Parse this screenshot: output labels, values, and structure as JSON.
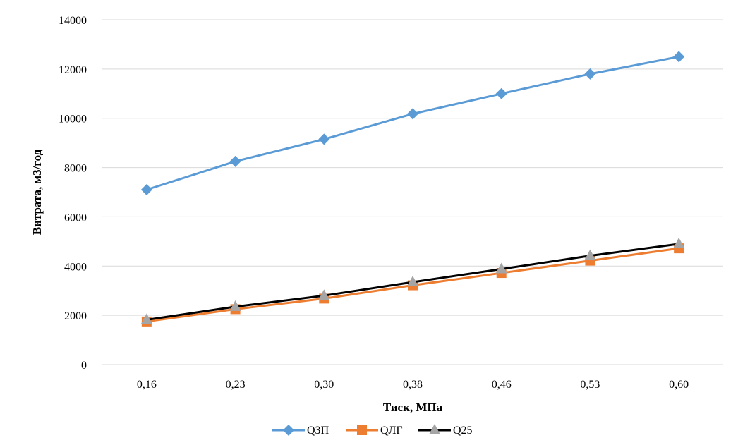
{
  "chart_data": {
    "type": "line",
    "categories": [
      "0,16",
      "0,23",
      "0,30",
      "0,38",
      "0,46",
      "0,53",
      "0,60"
    ],
    "series": [
      {
        "name": "QЗП",
        "values": [
          7100,
          8250,
          9150,
          10180,
          11000,
          11800,
          12500
        ],
        "color": "#5b9bd5",
        "marker": "diamond"
      },
      {
        "name": "QЛГ",
        "values": [
          1750,
          2250,
          2680,
          3220,
          3720,
          4220,
          4720
        ],
        "color": "#ed7d31",
        "marker": "square"
      },
      {
        "name": "Q25",
        "values": [
          1820,
          2350,
          2800,
          3350,
          3880,
          4420,
          4900
        ],
        "color": "#000000",
        "marker_color": "#a5a5a5",
        "marker": "triangle"
      }
    ],
    "xlabel": "Тиск, МПа",
    "ylabel": "Витрата, м3/год",
    "ylim": [
      0,
      14000
    ],
    "yticks": [
      "0",
      "2000",
      "4000",
      "6000",
      "8000",
      "10000",
      "12000",
      "14000"
    ],
    "grid": true,
    "legend": "bottom"
  }
}
